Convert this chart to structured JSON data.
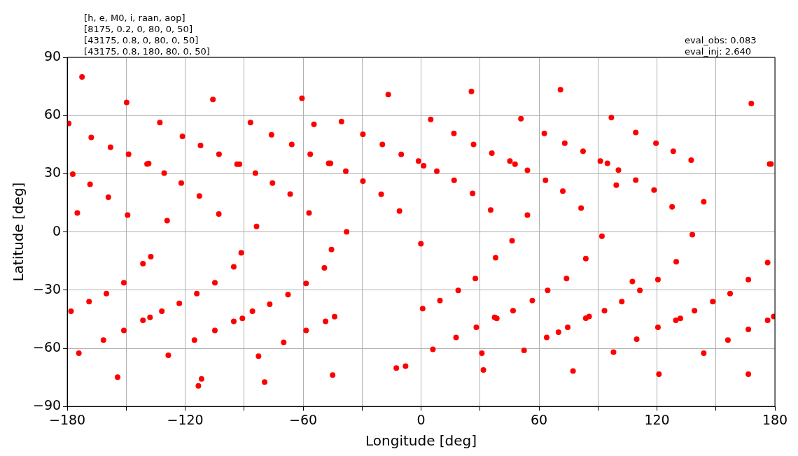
{
  "chart_data": {
    "type": "scatter",
    "xlabel": "Longitude [deg]",
    "ylabel": "Latitude [deg]",
    "annotations": [
      "[h, e, M0, i, raan, aop]\n[8175, 0.2, 0, 80, 0, 50]\n[43175, 0.8, 0, 80, 0, 50]\n[43175, 0.8, 180, 80, 0, 50]",
      "eval_obs: 0.083\neval_inj: 2.640"
    ],
    "xlim": [
      -180,
      180
    ],
    "ylim": [
      -90,
      90
    ],
    "xticks": [
      {
        "value": -180,
        "label": "−180"
      },
      {
        "value": -150,
        "label": null
      },
      {
        "value": -120,
        "label": "−120"
      },
      {
        "value": -90,
        "label": null
      },
      {
        "value": -60,
        "label": "−60"
      },
      {
        "value": -30,
        "label": null
      },
      0,
      {
        "value": 30,
        "label": null
      },
      60,
      {
        "value": 90,
        "label": null
      },
      120,
      {
        "value": 150,
        "label": null
      },
      180
    ],
    "yticks": [
      {
        "value": -90,
        "label": "−90"
      },
      {
        "value": -60,
        "label": "−60"
      },
      {
        "value": -30,
        "label": "−30"
      },
      0,
      30,
      60,
      90
    ],
    "grid": true,
    "legend": false,
    "marker": "circle",
    "series": [
      {
        "color": "#ff0000",
        "x": [
          -172.5,
          -149.8,
          -105.9,
          -60.6,
          -179.3,
          -167.8,
          -158,
          -148.8,
          -139.4,
          -138.6,
          -132.9,
          -121.4,
          -130.7,
          -112.2,
          -102.8,
          -93.6,
          -92.4,
          -86.8,
          -76.1,
          -65.8,
          -56.4,
          -54.5,
          -177.2,
          -168.4,
          -159.1,
          -174.9,
          -149.3,
          -129.2,
          -122,
          -112.8,
          -102.9,
          -84.3,
          -75.6,
          -66.6,
          -83.7,
          -57,
          -16.7,
          25.6,
          -40.5,
          -29.6,
          -47,
          -46.1,
          -38.3,
          -19.7,
          -10.1,
          -1.3,
          1.3,
          8,
          4.9,
          16.7,
          26.7,
          36,
          45.2,
          47.8,
          54.1,
          50.8,
          62.7,
          -29.6,
          -20.3,
          -11,
          16.8,
          26.2,
          35.4,
          54.1,
          63.3,
          -37.9,
          70.9,
          168,
          96.8,
          73.1,
          82.4,
          91.2,
          94.8,
          100.4,
          109.2,
          119.5,
          128.3,
          137.4,
          177.3,
          178,
          72.1,
          81.4,
          99.3,
          109.2,
          118.5,
          127.7,
          143.8,
          92,
          138,
          -178.1,
          -174.1,
          -168.9,
          -161.6,
          -160.1,
          -154.4,
          -151.2,
          -151.2,
          -141.5,
          -137.5,
          -141.5,
          -137.9,
          -131.9,
          -123,
          -128.6,
          -115.3,
          -114.1,
          -113.3,
          -111.7,
          -104.9,
          -104.9,
          -95.3,
          -91.5,
          -95.3,
          -90.9,
          -85.8,
          -77,
          -82.7,
          -79.6,
          -69.9,
          -67.7,
          -58.5,
          -58.5,
          -45.6,
          -49.2,
          -44,
          -48.6,
          -45,
          -0.1,
          0.8,
          -12.6,
          -7.9,
          6,
          9.6,
          18.9,
          17.8,
          27.6,
          28.1,
          30.9,
          31.7,
          37.9,
          46.3,
          37.4,
          38.5,
          46.8,
          56.6,
          52.4,
          64.4,
          63.9,
          83.8,
          74,
          69.9,
          74.6,
          77.3,
          83.8,
          85.5,
          93.3,
          102.1,
          97.9,
          107.5,
          111.3,
          109.7,
          120.5,
          120.5,
          121,
          129.8,
          129.6,
          131.9,
          139.1,
          148.4,
          143.8,
          157.2,
          156.1,
          166.5,
          166.5,
          166.5,
          176.3,
          176.3,
          179.4
        ],
        "values": [
          79.9,
          66.7,
          68.3,
          68.9,
          55.9,
          48.7,
          43.7,
          40.1,
          35,
          35.3,
          56.4,
          49.3,
          30.3,
          44.6,
          40.1,
          34.9,
          34.9,
          56.4,
          50.1,
          45.1,
          40.1,
          55.5,
          29.8,
          24.6,
          17.9,
          9.8,
          8.7,
          5.8,
          25.2,
          18.5,
          9.2,
          30.3,
          25.2,
          19.5,
          2.8,
          9.8,
          70.8,
          72.4,
          56.9,
          50.3,
          35.4,
          35.4,
          31.3,
          45.1,
          40,
          36.5,
          34.1,
          31.3,
          58,
          50.8,
          45.1,
          40.6,
          36.5,
          34.9,
          31.8,
          58.4,
          50.8,
          26.2,
          19.4,
          10.8,
          26.6,
          19.9,
          11.3,
          8.7,
          26.6,
          0,
          73.3,
          66.2,
          59,
          45.7,
          41.6,
          36.5,
          35.4,
          31.9,
          51.2,
          45.7,
          41.6,
          37,
          35,
          35,
          21,
          12.3,
          24.1,
          26.7,
          21.6,
          12.9,
          15.5,
          -2.2,
          -1.4,
          -40.9,
          -62.5,
          -35.9,
          -55.8,
          -31.8,
          -74.9,
          -26.2,
          -50.8,
          -16.4,
          -12.8,
          -45.6,
          -44,
          -40.9,
          -36.8,
          -63.6,
          -55.8,
          -31.8,
          -79.4,
          -75.8,
          -26.2,
          -50.8,
          -18,
          -10.8,
          -46.1,
          -44.6,
          -40.9,
          -37.3,
          -64.1,
          -77.4,
          -56.9,
          -32.3,
          -26.6,
          -50.8,
          -9.1,
          -18.5,
          -43.7,
          -46.1,
          -73.8,
          -6.1,
          -39.5,
          -70.2,
          -69.2,
          -60.5,
          -35.4,
          -30.2,
          -54.4,
          -24,
          -49.2,
          -62.5,
          -71.2,
          -13.3,
          -4.6,
          -44,
          -44.6,
          -40.6,
          -35.4,
          -61.1,
          -30.2,
          -54.4,
          -13.8,
          -24,
          -51.7,
          -49.2,
          -71.7,
          -44.5,
          -43.6,
          -40.6,
          -35.9,
          -62,
          -25.6,
          -30.2,
          -55.3,
          -24.6,
          -49.2,
          -73.3,
          -15.4,
          -45.6,
          -44.6,
          -40.6,
          -35.9,
          -62.5,
          -31.8,
          -55.8,
          -24.6,
          -50.3,
          -73.3,
          -15.8,
          -45.6,
          -43.6
        ]
      }
    ]
  }
}
